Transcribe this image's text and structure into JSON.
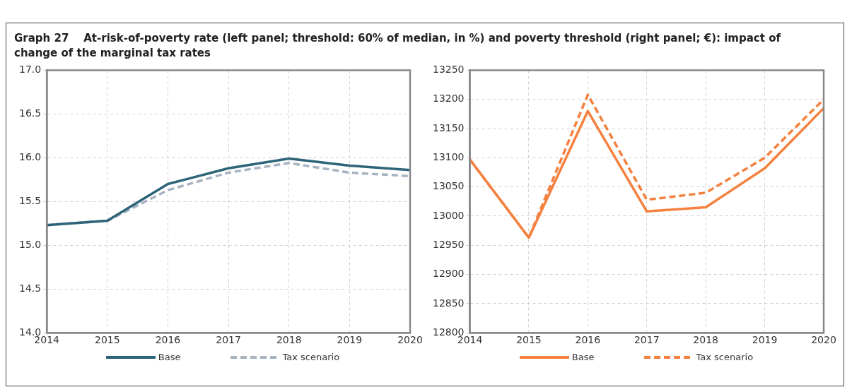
{
  "chart_data": [
    {
      "type": "line",
      "title": "Graph 27    At-risk-of-poverty rate (left panel; threshold: 60% of median, in %) and poverty threshold (right panel; €): impact of change of the marginal tax rates",
      "x": [
        2014,
        2015,
        2016,
        2017,
        2018,
        2019,
        2020
      ],
      "xlim": [
        2014,
        2020
      ],
      "xticks": [
        2014,
        2015,
        2016,
        2017,
        2018,
        2019,
        2020
      ],
      "ylim": [
        14,
        17
      ],
      "yticks": [
        {
          "value": 14,
          "label": "14.0"
        },
        {
          "value": 14.5,
          "label": "14.5"
        },
        {
          "value": 15,
          "label": "15.0"
        },
        {
          "value": 15.5,
          "label": "15.5"
        },
        {
          "value": 16,
          "label": "16.0"
        },
        {
          "value": 16.5,
          "label": "16.5"
        },
        {
          "value": 17,
          "label": "17.0"
        }
      ],
      "grid": true,
      "legend": "bottom",
      "marker": "none",
      "series": [
        {
          "name": "Base",
          "color": "#2e6479",
          "line_style": "solid",
          "values": [
            15.23,
            15.28,
            15.7,
            15.88,
            15.99,
            15.91,
            15.86
          ]
        },
        {
          "name": "Tax scenario",
          "color": "#a8b3c1",
          "line_style": "dashed",
          "values": [
            15.23,
            15.28,
            15.63,
            15.83,
            15.94,
            15.83,
            15.79
          ]
        }
      ]
    },
    {
      "type": "line",
      "x": [
        2014,
        2015,
        2016,
        2017,
        2018,
        2019,
        2020
      ],
      "xlim": [
        2014,
        2020
      ],
      "xticks": [
        2014,
        2015,
        2016,
        2017,
        2018,
        2019,
        2020
      ],
      "ylim": [
        12800,
        13250
      ],
      "yticks": [
        12800,
        12850,
        12900,
        12950,
        13000,
        13050,
        13100,
        13150,
        13200,
        13250
      ],
      "grid": true,
      "legend": "bottom",
      "marker": "none",
      "series": [
        {
          "name": "Base",
          "color": "#f4813f",
          "line_style": "solid",
          "values": [
            13097,
            12963,
            13180,
            13008,
            13015,
            13082,
            13185
          ]
        },
        {
          "name": "Tax scenario",
          "color": "#f4813f",
          "line_style": "dashed",
          "values": [
            13097,
            12963,
            13208,
            13028,
            13040,
            13100,
            13200
          ]
        }
      ]
    }
  ]
}
